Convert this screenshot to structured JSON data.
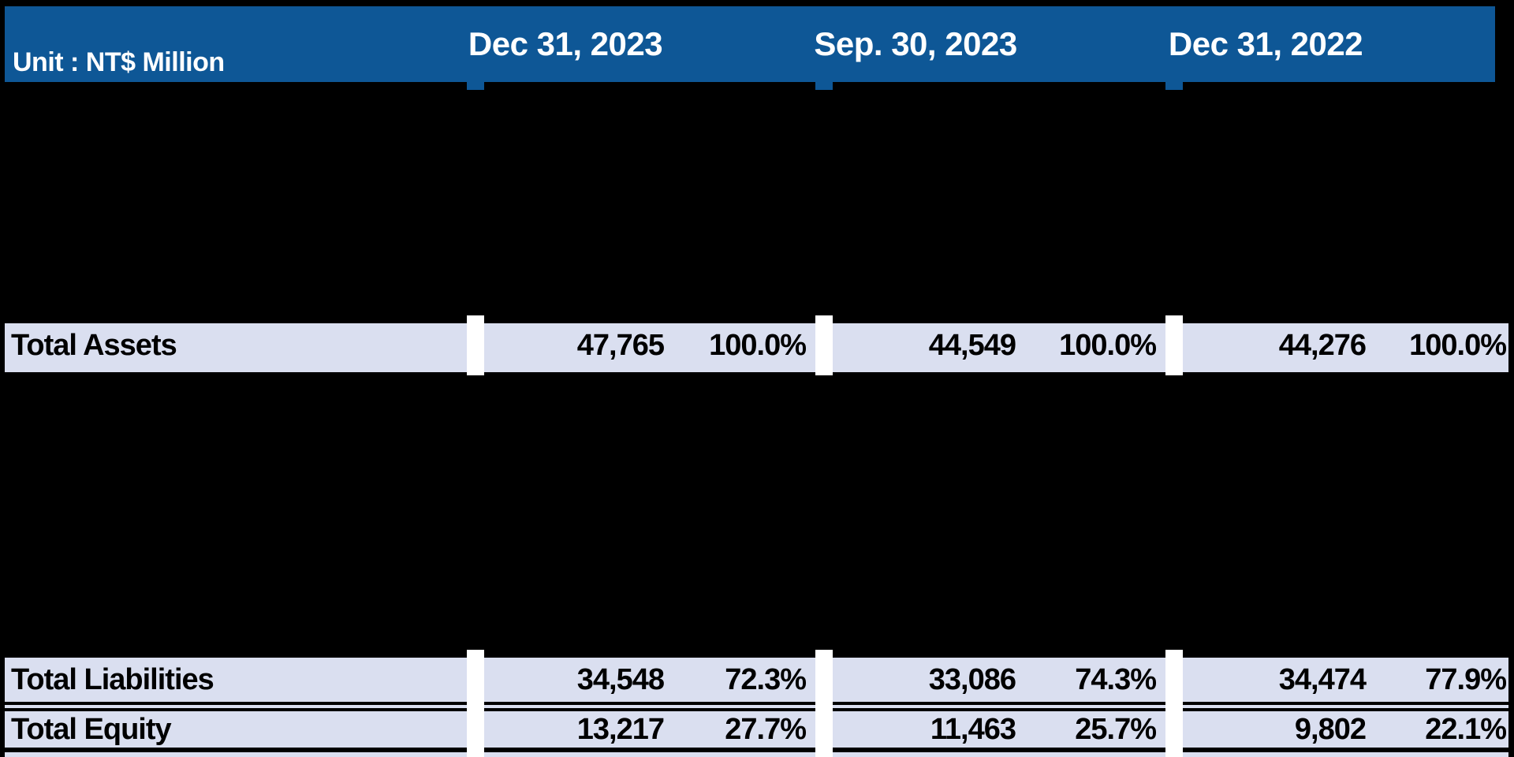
{
  "header": {
    "unit_label": "Unit : NT$ Million",
    "dates": [
      "Dec 31, 2023",
      "Sep. 30, 2023",
      "Dec 31, 2022"
    ]
  },
  "rows": [
    {
      "label": "Total Assets",
      "cells": [
        {
          "amount": "47,765",
          "pct": "100.0%"
        },
        {
          "amount": "44,549",
          "pct": "100.0%"
        },
        {
          "amount": "44,276",
          "pct": "100.0%"
        }
      ]
    },
    {
      "label": "Total Liabilities",
      "cells": [
        {
          "amount": "34,548",
          "pct": "72.3%"
        },
        {
          "amount": "33,086",
          "pct": "74.3%"
        },
        {
          "amount": "34,474",
          "pct": "77.9%"
        }
      ]
    },
    {
      "label": "Total Equity",
      "cells": [
        {
          "amount": "13,217",
          "pct": "27.7%"
        },
        {
          "amount": "11,463",
          "pct": "25.7%"
        },
        {
          "amount": "9,802",
          "pct": "22.1%"
        }
      ]
    }
  ],
  "colors": {
    "background": "#000000",
    "header_bg": "#0E5796",
    "header_text": "#FFFFFF",
    "row_bg": "#DADFF0",
    "row_text": "#000000",
    "separator": "#FFFFFF",
    "border": "#000000"
  }
}
